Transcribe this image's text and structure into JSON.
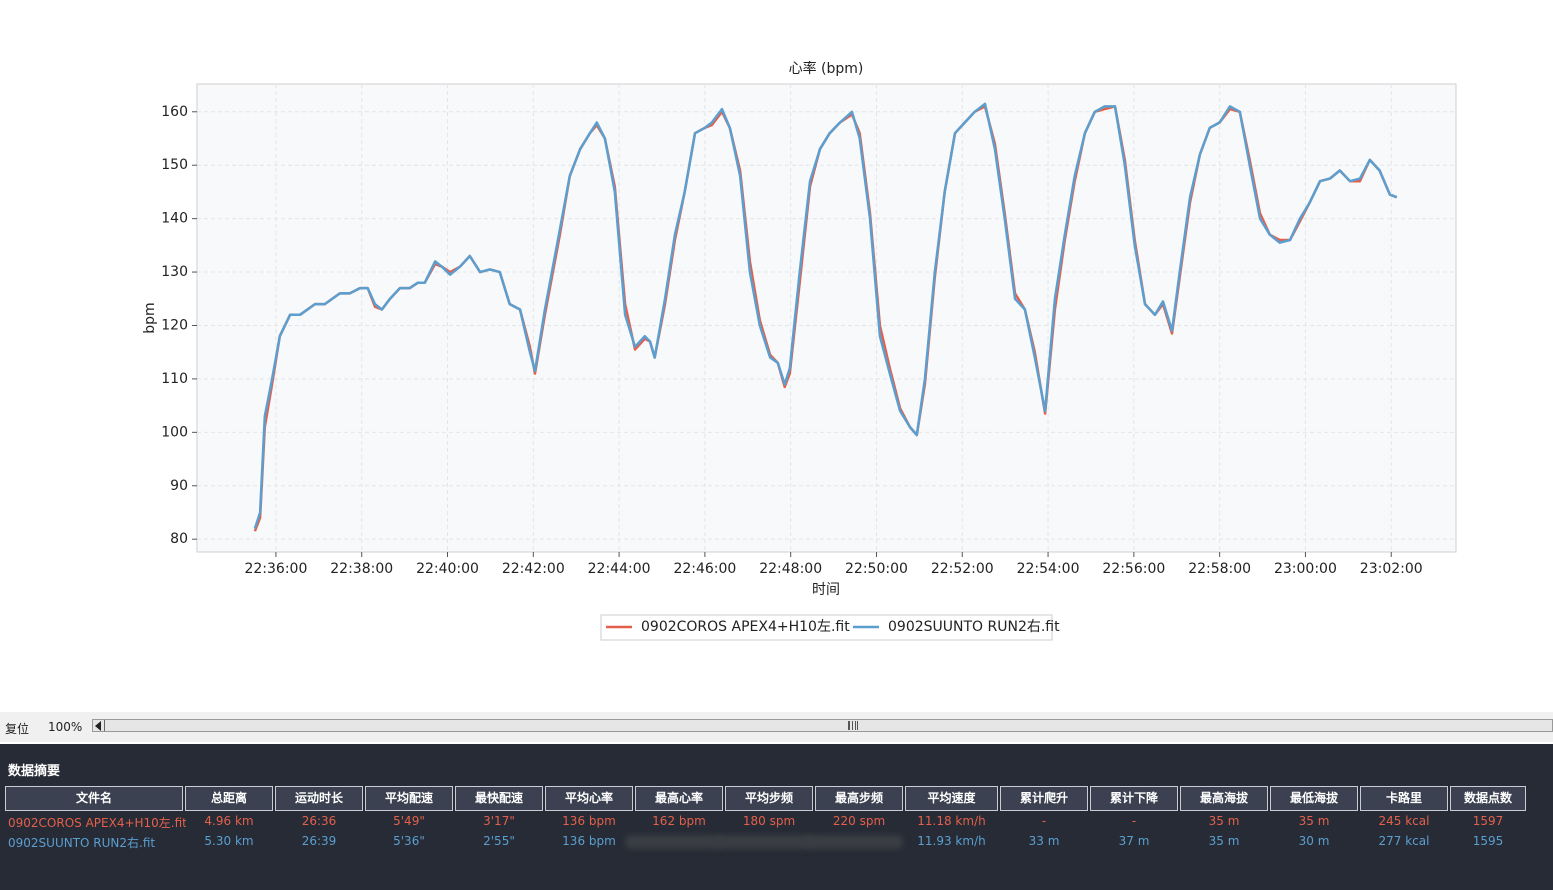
{
  "chart_data": {
    "type": "line",
    "title": "心率 (bpm)",
    "x_label": "时间",
    "y_label": "bpm",
    "x": [
      1355.51,
      1355.63,
      1355.74,
      1355.91,
      1356.09,
      1356.33,
      1356.56,
      1356.91,
      1357.14,
      1357.49,
      1357.72,
      1357.96,
      1358.14,
      1358.31,
      1358.47,
      1358.66,
      1358.89,
      1359.12,
      1359.31,
      1359.47,
      1359.71,
      1359.87,
      1360.06,
      1360.29,
      1360.52,
      1360.76,
      1360.99,
      1361.22,
      1361.45,
      1361.69,
      1361.92,
      1362.04,
      1362.27,
      1362.62,
      1362.85,
      1363.09,
      1363.32,
      1363.48,
      1363.67,
      1363.9,
      1364.14,
      1364.37,
      1364.6,
      1364.72,
      1364.83,
      1365.07,
      1365.3,
      1365.53,
      1365.77,
      1366.0,
      1366.16,
      1366.4,
      1366.58,
      1366.82,
      1367.05,
      1367.28,
      1367.52,
      1367.7,
      1367.86,
      1367.98,
      1368.21,
      1368.45,
      1368.68,
      1368.91,
      1369.15,
      1369.43,
      1369.61,
      1369.85,
      1370.08,
      1370.31,
      1370.55,
      1370.78,
      1370.94,
      1371.13,
      1371.36,
      1371.59,
      1371.83,
      1372.06,
      1372.29,
      1372.53,
      1372.76,
      1372.99,
      1373.23,
      1373.46,
      1373.69,
      1373.93,
      1374.16,
      1374.39,
      1374.62,
      1374.86,
      1375.09,
      1375.32,
      1375.56,
      1375.79,
      1376.02,
      1376.26,
      1376.49,
      1376.68,
      1376.89,
      1377.07,
      1377.31,
      1377.54,
      1377.77,
      1378.0,
      1378.24,
      1378.47,
      1378.7,
      1378.94,
      1379.17,
      1379.4,
      1379.64,
      1379.87,
      1380.1,
      1380.34,
      1380.57,
      1380.8,
      1381.04,
      1381.27,
      1381.5,
      1381.73,
      1381.97,
      1382.13
    ],
    "series": [
      {
        "name": "0902COROS APEX4+H10左.fit",
        "color": "#e4604c",
        "values": [
          81.5,
          84,
          101,
          109,
          118,
          122,
          122,
          124,
          124,
          126,
          126,
          127,
          127,
          123.5,
          123,
          125,
          127,
          127,
          128,
          128,
          131.5,
          131,
          130,
          131,
          133,
          130,
          130.5,
          130,
          124,
          123,
          116,
          111,
          122,
          137,
          148,
          153,
          156,
          157.5,
          155,
          146,
          124,
          115.5,
          117.5,
          117,
          114,
          124,
          136,
          145,
          156,
          157,
          157.5,
          160,
          157,
          149,
          132,
          121,
          114.5,
          113,
          108.5,
          111,
          128,
          146,
          153,
          156,
          158,
          159.5,
          156,
          141,
          120,
          112,
          104.5,
          101,
          99.5,
          109,
          129,
          145,
          156,
          158,
          160,
          161,
          154,
          141,
          126,
          123,
          115,
          103.5,
          123,
          136,
          147,
          156,
          160,
          160.5,
          161,
          151,
          136,
          124,
          122,
          124,
          118.5,
          129,
          143,
          152,
          157,
          158,
          160.5,
          160,
          151,
          141,
          137,
          136,
          136,
          139.5,
          143,
          147,
          147.5,
          149,
          147,
          147,
          151,
          149,
          144.5,
          144
        ]
      },
      {
        "name": "0902SUUNTO RUN2右.fit",
        "color": "#5b9fd0",
        "values": [
          82,
          85,
          103,
          110,
          118,
          122,
          122,
          124,
          124,
          126,
          126,
          127,
          127,
          124,
          123,
          125,
          127,
          127,
          128,
          128,
          132,
          131,
          129.5,
          131,
          133,
          130,
          130.5,
          130,
          124,
          123,
          115,
          111.5,
          123,
          138,
          148,
          153,
          156,
          158,
          155,
          145,
          122,
          116,
          118,
          117,
          114,
          125,
          137,
          145,
          156,
          157,
          158,
          160.5,
          157,
          148,
          130,
          120,
          114,
          113,
          109,
          112,
          130,
          147,
          153,
          156,
          158,
          160,
          155,
          140,
          118,
          111,
          104,
          101,
          99.5,
          110,
          130,
          145,
          156,
          158,
          160,
          161.5,
          153,
          140,
          125,
          123,
          114,
          104,
          125,
          137,
          148,
          156,
          160,
          161,
          161,
          150,
          135,
          124,
          122,
          124.5,
          119,
          130,
          144,
          152,
          157,
          158,
          161,
          160,
          150,
          140,
          137,
          135.5,
          136,
          140,
          143,
          147,
          147.5,
          149,
          147,
          147.5,
          151,
          149,
          144.5,
          144
        ]
      }
    ],
    "xlim": [
      1354.16,
      1383.51
    ],
    "xticks": [
      {
        "value": 1356,
        "label": "22:36:00"
      },
      {
        "value": 1358,
        "label": "22:38:00"
      },
      {
        "value": 1360,
        "label": "22:40:00"
      },
      {
        "value": 1362,
        "label": "22:42:00"
      },
      {
        "value": 1364,
        "label": "22:44:00"
      },
      {
        "value": 1366,
        "label": "22:46:00"
      },
      {
        "value": 1368,
        "label": "22:48:00"
      },
      {
        "value": 1370,
        "label": "22:50:00"
      },
      {
        "value": 1372,
        "label": "22:52:00"
      },
      {
        "value": 1374,
        "label": "22:54:00"
      },
      {
        "value": 1376,
        "label": "22:56:00"
      },
      {
        "value": 1378,
        "label": "22:58:00"
      },
      {
        "value": 1380,
        "label": "23:00:00"
      },
      {
        "value": 1382,
        "label": "23:02:00"
      }
    ],
    "ylim": [
      77.6,
      165.2
    ],
    "yticks": [
      80,
      90,
      100,
      110,
      120,
      130,
      140,
      150,
      160
    ],
    "grid": true,
    "legend": "bottom"
  },
  "toolbar": {
    "reset": "复位",
    "zoom": "100%"
  },
  "summary": {
    "title": "数据摘要",
    "columns": [
      "文件名",
      "总距离",
      "运动时长",
      "平均配速",
      "最快配速",
      "平均心率",
      "最高心率",
      "平均步频",
      "最高步频",
      "平均速度",
      "累计爬升",
      "累计下降",
      "最高海拔",
      "最低海拔",
      "卡路里",
      "数据点数"
    ],
    "rows": [
      [
        "0902COROS APEX4+H10左.fit",
        "4.96 km",
        "26:36",
        "5'49\"",
        "3'17\"",
        "136 bpm",
        "162 bpm",
        "180 spm",
        "220 spm",
        "11.18 km/h",
        "-",
        "-",
        "35 m",
        "35 m",
        "245 kcal",
        "1597"
      ],
      [
        "0902SUUNTO RUN2右.fit",
        "5.30 km",
        "26:39",
        "5'36\"",
        "2'55\"",
        "136 bpm",
        null,
        null,
        null,
        "11.93 km/h",
        "33 m",
        "37 m",
        "35 m",
        "30 m",
        "277 kcal",
        "1595"
      ]
    ]
  }
}
